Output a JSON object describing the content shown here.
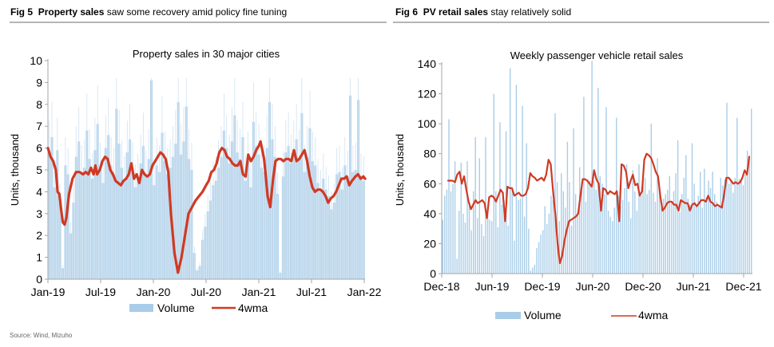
{
  "figures": [
    {
      "number": "Fig 5",
      "bold_title": "Property sales",
      "rest_title": "saw some recovery amid policy fine tuning"
    },
    {
      "number": "Fig 6",
      "bold_title": "PV retail sales",
      "rest_title": "stay relatively solid"
    }
  ],
  "source": "Source: Wind, Mizuho",
  "colors": {
    "volume": "#a9cde8",
    "line": "#cf3a24",
    "axis": "#a6a6a6",
    "rule": "#b5b5b5"
  },
  "chart_data": [
    {
      "type": "bar",
      "title": "Property sales in 30 major cities",
      "xlabel": "",
      "ylabel": "Units, thousand",
      "ylim": [
        0,
        10
      ],
      "yticks": [
        "0",
        "1",
        "2",
        "3",
        "4",
        "5",
        "6",
        "7",
        "8",
        "9",
        "10"
      ],
      "xticks": [
        "Jan-19",
        "Jul-19",
        "Jan-20",
        "Jul-20",
        "Jan-21",
        "Jul-21",
        "Jan-22"
      ],
      "grid": false,
      "legend": {
        "placement": "bottom",
        "entries": [
          "Volume",
          "4wma"
        ]
      },
      "frequency": "daily volume, 4-week moving average line",
      "series": [
        {
          "name": "4wma",
          "type": "line",
          "x_months_from_jan19": [
            0,
            0.3,
            0.6,
            0.9,
            1.1,
            1.3,
            1.5,
            1.7,
            1.9,
            2.1,
            2.4,
            2.8,
            3.2,
            3.6,
            4.0,
            4.3,
            4.6,
            4.9,
            5.2,
            5.4,
            5.6,
            5.9,
            6.2,
            6.5,
            6.8,
            7.1,
            7.4,
            7.7,
            8.0,
            8.3,
            8.6,
            8.9,
            9.2,
            9.5,
            9.8,
            10.1,
            10.4,
            10.7,
            11.0,
            11.3,
            11.6,
            11.9,
            12.2,
            12.5,
            12.8,
            13.1,
            13.4,
            13.7,
            14.0,
            14.4,
            14.8,
            15.2,
            15.6,
            16.0,
            16.4,
            16.8,
            17.2,
            17.6,
            18.0,
            18.3,
            18.6,
            18.9,
            19.2,
            19.5,
            19.8,
            20.1,
            20.4,
            20.7,
            21.0,
            21.3,
            21.6,
            21.9,
            22.2,
            22.5,
            22.8,
            23.1,
            23.4,
            23.7,
            24.0,
            24.2,
            24.4,
            24.6,
            24.8,
            25.0,
            25.3,
            25.6,
            25.9,
            26.2,
            26.5,
            26.8,
            27.1,
            27.4,
            27.7,
            28.0,
            28.3,
            28.6,
            28.9,
            29.2,
            29.5,
            29.8,
            30.1,
            30.4,
            30.7,
            31.0,
            31.3,
            31.6,
            31.9,
            32.2,
            32.5,
            32.8,
            33.1,
            33.4,
            33.7,
            34.0,
            34.3,
            34.6,
            35.0,
            35.3,
            35.6,
            35.9,
            36.1
          ],
          "values": [
            6.0,
            5.6,
            5.4,
            5.0,
            4.0,
            3.9,
            3.2,
            2.6,
            2.5,
            2.8,
            3.9,
            4.6,
            4.9,
            4.9,
            4.8,
            4.9,
            4.8,
            5.1,
            4.8,
            5.2,
            4.8,
            5.0,
            5.4,
            5.6,
            5.5,
            5.0,
            4.8,
            4.5,
            4.4,
            4.3,
            4.5,
            4.6,
            4.8,
            5.3,
            4.6,
            4.8,
            4.4,
            5.0,
            4.8,
            4.7,
            4.8,
            5.2,
            5.4,
            5.6,
            5.8,
            5.7,
            5.5,
            4.9,
            3.0,
            1.2,
            0.3,
            1.0,
            2.0,
            3.0,
            3.3,
            3.6,
            3.8,
            4.0,
            4.3,
            4.5,
            4.9,
            5.0,
            5.3,
            5.8,
            6.0,
            5.9,
            5.6,
            5.5,
            5.3,
            5.2,
            5.2,
            5.4,
            4.8,
            4.7,
            5.7,
            5.4,
            5.6,
            5.9,
            6.1,
            6.3,
            5.9,
            5.5,
            4.7,
            3.8,
            3.3,
            4.5,
            5.4,
            5.5,
            5.5,
            5.4,
            5.5,
            5.5,
            5.4,
            5.9,
            5.4,
            5.5,
            5.7,
            5.9,
            5.4,
            4.7,
            4.2,
            4.0,
            4.1,
            4.1,
            4.0,
            3.8,
            3.5,
            3.7,
            3.8,
            4.0,
            4.3,
            4.6,
            4.6,
            4.7,
            4.3,
            4.5,
            4.7,
            4.8,
            4.6,
            4.7,
            4.6
          ]
        },
        {
          "name": "Volume",
          "type": "bar",
          "note": "dense daily bars, typical range 4-6.5 thousand with spikes up to ~9",
          "values": [
            5.8,
            6.5,
            4.2,
            5.9,
            3.5,
            0.5,
            5.2,
            4.8,
            2.1,
            3.5,
            5.6,
            6.3,
            4.9,
            5.1,
            6.8,
            5.5,
            4.6,
            5.9,
            7.1,
            5.0,
            4.4,
            6.0,
            6.6,
            5.2,
            4.8,
            7.8,
            6.2,
            5.1,
            4.5,
            5.8,
            6.4,
            5.0,
            4.2,
            4.6,
            5.3,
            6.1,
            4.7,
            5.5,
            9.1,
            4.3,
            5.2,
            4.9,
            6.7,
            5.4,
            4.8,
            5.1,
            5.6,
            6.2,
            8.1,
            5.7,
            6.3,
            7.9,
            5.5,
            5.0,
            1.2,
            0.4,
            0.6,
            1.8,
            2.4,
            3.1,
            3.6,
            4.3,
            4.5,
            5.1,
            5.6,
            6.8,
            6.0,
            5.3,
            6.3,
            7.5,
            5.8,
            5.5,
            6.5,
            4.5,
            5.4,
            4.2,
            7.2,
            6.1,
            5.7,
            5.1,
            4.9,
            6.0,
            8.1,
            6.4,
            5.6,
            3.9,
            0.3,
            4.7,
            5.8,
            6.1,
            5.3,
            5.8,
            6.4,
            5.5,
            7.6,
            4.9,
            5.6,
            6.9,
            5.4,
            5.2,
            4.4,
            4.0,
            4.6,
            4.1,
            3.8,
            3.2,
            3.5,
            4.8,
            4.9,
            4.1,
            5.2,
            4.7,
            8.4,
            4.9,
            5.0,
            8.2,
            4.6,
            4.5
          ]
        }
      ]
    },
    {
      "type": "bar",
      "title": "Weekly passenger vehicle retail sales",
      "xlabel": "",
      "ylabel": "Units, thousand",
      "ylim": [
        0,
        140
      ],
      "yticks": [
        "0",
        "20",
        "40",
        "60",
        "80",
        "100",
        "120",
        "140"
      ],
      "xticks": [
        "Dec-18",
        "Jun-19",
        "Dec-19",
        "Jun-20",
        "Dec-20",
        "Jun-21",
        "Dec-21"
      ],
      "grid": false,
      "legend": {
        "placement": "bottom",
        "entries": [
          "Volume",
          "4wma"
        ]
      },
      "series": [
        {
          "name": "Volume",
          "type": "bar",
          "values": [
            36,
            52,
            56,
            103,
            55,
            60,
            75,
            10,
            42,
            74,
            40,
            34,
            75,
            45,
            29,
            55,
            91,
            37,
            77,
            33,
            25,
            91,
            45,
            36,
            35,
            120,
            55,
            31,
            101,
            46,
            49,
            95,
            32,
            137,
            56,
            22,
            126,
            49,
            50,
            112,
            38,
            87,
            30,
            2,
            4,
            6,
            17,
            21,
            26,
            29,
            45,
            33,
            40,
            52,
            49,
            107,
            61,
            35,
            67,
            55,
            44,
            88,
            61,
            32,
            97,
            53,
            41,
            71,
            58,
            118,
            48,
            63,
            62,
            142,
            62,
            56,
            124,
            65,
            60,
            53,
            111,
            42,
            38,
            35,
            44,
            104,
            52,
            45,
            49,
            57,
            73,
            48,
            37,
            69,
            55,
            42,
            73,
            52,
            66,
            64,
            53,
            56,
            100,
            54,
            48,
            77,
            55,
            44,
            50,
            53,
            56,
            65,
            48,
            55,
            67,
            89,
            41,
            53,
            64,
            79,
            50,
            46,
            87,
            60,
            45,
            52,
            68,
            44,
            70,
            51,
            62,
            57,
            68,
            53,
            48,
            45,
            64,
            59,
            63,
            114,
            60,
            62,
            54,
            64,
            104,
            63,
            63,
            59,
            66,
            82,
            77,
            110
          ]
        },
        {
          "name": "4wma",
          "type": "line",
          "values": [
            62,
            62,
            62,
            61,
            66,
            68,
            60,
            65,
            56,
            48,
            43,
            46,
            49,
            47,
            48,
            49,
            47,
            37,
            51,
            52,
            51,
            48,
            52,
            56,
            54,
            35,
            58,
            57,
            57,
            52,
            53,
            54,
            52,
            52,
            53,
            57,
            67,
            65,
            64,
            62,
            63,
            64,
            62,
            66,
            76,
            73,
            55,
            40,
            20,
            7,
            12,
            22,
            29,
            35,
            36,
            37,
            38,
            40,
            52,
            63,
            63,
            62,
            60,
            58,
            69,
            63,
            60,
            42,
            57,
            56,
            53,
            55,
            54,
            53,
            55,
            35,
            73,
            72,
            68,
            57,
            62,
            66,
            59,
            60,
            52,
            55,
            76,
            80,
            79,
            77,
            73,
            68,
            65,
            52,
            42,
            44,
            47,
            48,
            48,
            46,
            46,
            42,
            49,
            48,
            47,
            47,
            42,
            46,
            47,
            45,
            47,
            49,
            49,
            48,
            52,
            48,
            47,
            45,
            46,
            45,
            44,
            53,
            64,
            64,
            62,
            60,
            61,
            60,
            61,
            64,
            69,
            66,
            78
          ]
        }
      ]
    }
  ]
}
